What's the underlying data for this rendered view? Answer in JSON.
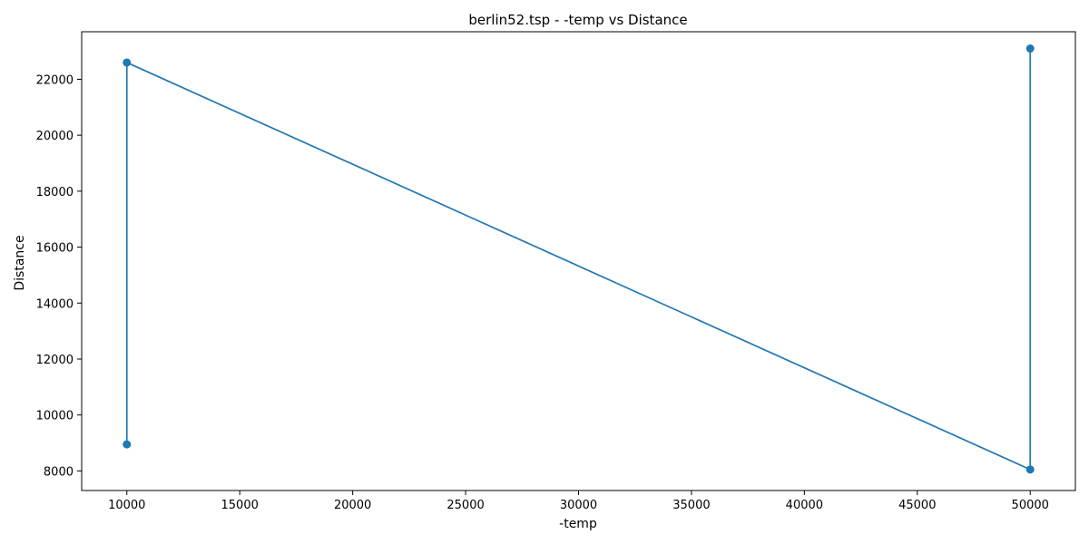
{
  "chart_data": {
    "type": "line",
    "title": "berlin52.tsp - -temp vs Distance",
    "xlabel": "-temp",
    "ylabel": "Distance",
    "xlim": [
      8000,
      52000
    ],
    "ylim": [
      7300,
      23700
    ],
    "xticks": [
      10000,
      15000,
      20000,
      25000,
      30000,
      35000,
      40000,
      45000,
      50000
    ],
    "yticks": [
      8000,
      10000,
      12000,
      14000,
      16000,
      18000,
      20000,
      22000
    ],
    "grid": false,
    "legend": "none",
    "series": [
      {
        "color": "#1f77b4",
        "marker": "circle",
        "x": [
          10000,
          10000,
          50000,
          50000
        ],
        "y": [
          8950,
          22600,
          8050,
          23100
        ]
      }
    ]
  }
}
